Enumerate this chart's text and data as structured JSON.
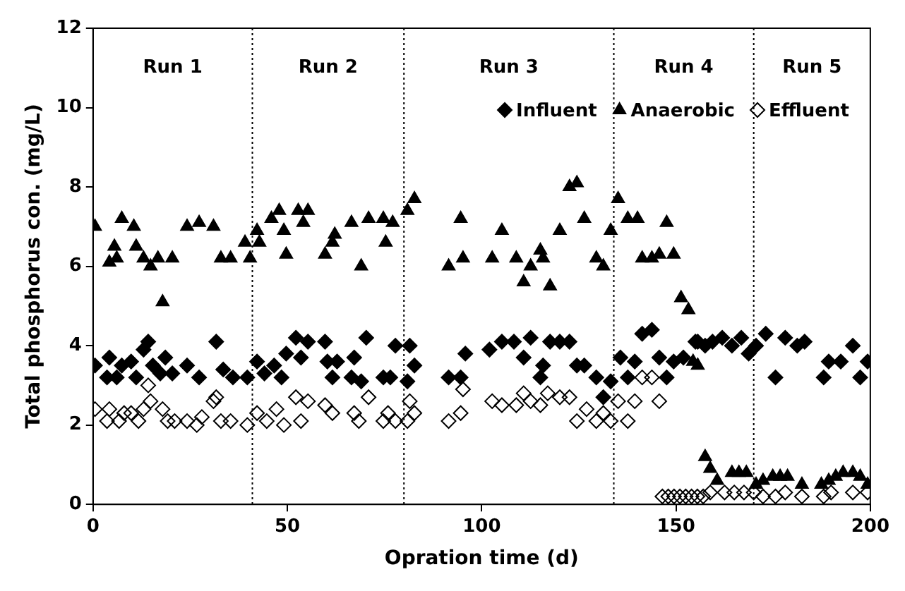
{
  "chart_data": {
    "type": "scatter",
    "xlabel": "Opration time (d)",
    "ylabel": "Total phosphorus con. (mg/L)",
    "xlim": [
      0,
      200
    ],
    "xticks": [
      0,
      50,
      100,
      150,
      200
    ],
    "ylim": [
      0,
      12
    ],
    "yticks": [
      0,
      2,
      4,
      6,
      8,
      10,
      12
    ],
    "grid": false,
    "legend": "top right",
    "ref_lines": [
      {
        "axis": "x",
        "value": 41,
        "line_style": "dotted"
      },
      {
        "axis": "x",
        "value": 80,
        "line_style": "dotted"
      },
      {
        "axis": "x",
        "value": 134,
        "line_style": "dotted"
      },
      {
        "axis": "x",
        "value": 170,
        "line_style": "dotted"
      }
    ],
    "annotations": [
      "Run 1",
      "Run 2",
      "Run 3",
      "Run 4",
      "Run 5"
    ],
    "series": [
      {
        "name": "Influent",
        "color": "#000000",
        "marker": "diamond",
        "x": [
          0.5,
          4.2,
          3.6,
          6.1,
          7.4,
          9.8,
          11.1,
          13,
          14.2,
          15.4,
          17.3,
          18.6,
          20.4,
          24.2,
          27.3,
          31.7,
          33.5,
          36,
          39.7,
          42.2,
          44.1,
          46.6,
          48.5,
          49.7,
          52.2,
          53.5,
          55.3,
          59.7,
          60.3,
          61.6,
          62.8,
          66.5,
          67.2,
          69,
          70.3,
          74.7,
          76.5,
          77.8,
          80.9,
          81.5,
          82.7,
          91.5,
          94.6,
          95.8,
          102,
          105.2,
          108.3,
          110.8,
          112.6,
          115.8,
          115.1,
          117.6,
          120.1,
          122.6,
          124.5,
          126.4,
          129.5,
          131.3,
          133.2,
          135.7,
          137.6,
          139.4,
          141.3,
          143.8,
          145.7,
          147.6,
          149.4,
          151.9,
          155,
          155.6,
          157.5,
          159.4,
          161.9,
          164.4,
          166.8,
          168.7,
          170.6,
          173.1,
          175.6,
          178.1,
          181.2,
          183.1,
          188,
          189.3,
          192.4,
          195.5,
          197.4,
          199.3
        ],
        "values": [
          3.5,
          3.7,
          3.2,
          3.2,
          3.5,
          3.6,
          3.2,
          3.9,
          4.1,
          3.5,
          3.3,
          3.7,
          3.3,
          3.5,
          3.2,
          4.1,
          3.4,
          3.2,
          3.2,
          3.6,
          3.3,
          3.5,
          3.2,
          3.8,
          4.2,
          3.7,
          4.1,
          4.1,
          3.6,
          3.2,
          3.6,
          3.2,
          3.7,
          3.1,
          4.2,
          3.2,
          3.2,
          4,
          3.1,
          4,
          3.5,
          3.2,
          3.2,
          3.8,
          3.9,
          4.1,
          4.1,
          3.7,
          4.2,
          3.5,
          3.2,
          4.1,
          4.1,
          4.1,
          3.5,
          3.5,
          3.2,
          2.7,
          3.1,
          3.7,
          3.2,
          3.6,
          4.3,
          4.4,
          3.7,
          3.2,
          3.6,
          3.7,
          4.1,
          4.1,
          4,
          4.1,
          4.2,
          4,
          4.2,
          3.8,
          4,
          4.3,
          3.2,
          4.2,
          4,
          4.1,
          3.2,
          3.6,
          3.6,
          4,
          3.2,
          3.6
        ]
      },
      {
        "name": "Anaerobic",
        "color": "#000000",
        "marker": "triangle",
        "x": [
          0.5,
          4.2,
          5.5,
          6.1,
          7.4,
          10.5,
          11.1,
          13,
          14.8,
          16.7,
          17.9,
          20.4,
          24.2,
          27.3,
          31,
          32.9,
          35.4,
          39.1,
          40.4,
          42.2,
          42.8,
          45.9,
          47.9,
          49.1,
          49.7,
          52.8,
          54.1,
          55.3,
          59.7,
          61.6,
          62.2,
          66.5,
          69,
          70.9,
          74.7,
          75.3,
          77.1,
          80.9,
          82.7,
          91.5,
          94.6,
          95.2,
          102.7,
          105.2,
          108.9,
          110.8,
          112.6,
          115.1,
          115.8,
          117.6,
          120.1,
          122.6,
          124.5,
          126.4,
          129.5,
          131.3,
          133.2,
          135.1,
          137.6,
          140.1,
          141.3,
          143.8,
          145.7,
          147.6,
          149.4,
          151.3,
          153.2,
          154.4,
          155.6,
          157.5,
          158.8,
          160.6,
          164.4,
          166.2,
          168.1,
          170.6,
          172.4,
          174.9,
          176.8,
          178.7,
          182.4,
          187.4,
          189.3,
          191.1,
          193,
          195.5,
          197.4,
          199.3
        ],
        "values": [
          7,
          6.1,
          6.5,
          6.2,
          7.2,
          7,
          6.5,
          6.2,
          6,
          6.2,
          5.1,
          6.2,
          7,
          7.1,
          7,
          6.2,
          6.2,
          6.6,
          6.2,
          6.9,
          6.6,
          7.2,
          7.4,
          6.9,
          6.3,
          7.4,
          7.1,
          7.4,
          6.3,
          6.6,
          6.8,
          7.1,
          6,
          7.2,
          7.2,
          6.6,
          7.1,
          7.4,
          7.7,
          6,
          7.2,
          6.2,
          6.2,
          6.9,
          6.2,
          5.6,
          6,
          6.4,
          6.2,
          5.5,
          6.9,
          8,
          8.1,
          7.2,
          6.2,
          6,
          6.9,
          7.7,
          7.2,
          7.2,
          6.2,
          6.2,
          6.3,
          7.1,
          6.3,
          5.2,
          4.9,
          3.6,
          3.5,
          1.2,
          0.9,
          0.6,
          0.8,
          0.8,
          0.8,
          0.5,
          0.6,
          0.7,
          0.7,
          0.7,
          0.5,
          0.5,
          0.6,
          0.7,
          0.8,
          0.8,
          0.7,
          0.5
        ]
      },
      {
        "name": "Effluent",
        "color": "#000000",
        "marker": "diamond",
        "x": [
          0.5,
          3.6,
          4.2,
          6.7,
          8,
          9.8,
          11.7,
          13,
          14.2,
          14.8,
          17.9,
          19.2,
          21,
          24.2,
          26.7,
          28,
          31.7,
          31,
          32.9,
          35.4,
          39.7,
          42.2,
          44.7,
          47.2,
          49.1,
          52.2,
          53.5,
          55.3,
          59.7,
          61.6,
          67.2,
          68.4,
          70.9,
          74.7,
          75.9,
          77.8,
          80.9,
          81.5,
          82.7,
          91.5,
          94.6,
          95.2,
          102.7,
          105.2,
          108.9,
          110.8,
          112.6,
          115.1,
          117,
          120.1,
          122.6,
          124.5,
          127,
          129.5,
          131.3,
          133.2,
          135.1,
          137.6,
          139.4,
          141.3,
          143.8,
          145.7,
          146.5,
          148,
          149.5,
          151,
          152.5,
          154,
          155.5,
          157,
          158.8,
          162.5,
          165,
          167.5,
          170,
          172.4,
          175.6,
          178.1,
          182.4,
          188,
          189.9,
          195.5,
          199.3
        ],
        "values": [
          2.4,
          2.1,
          2.4,
          2.1,
          2.3,
          2.3,
          2.1,
          2.4,
          3,
          2.6,
          2.4,
          2.1,
          2.1,
          2.1,
          2,
          2.2,
          2.7,
          2.6,
          2.1,
          2.1,
          2,
          2.3,
          2.1,
          2.4,
          2,
          2.7,
          2.1,
          2.6,
          2.5,
          2.3,
          2.3,
          2.1,
          2.7,
          2.1,
          2.3,
          2.1,
          2.1,
          2.6,
          2.3,
          2.1,
          2.3,
          2.9,
          2.6,
          2.5,
          2.5,
          2.8,
          2.6,
          2.5,
          2.8,
          2.7,
          2.7,
          2.1,
          2.4,
          2.1,
          2.3,
          2.1,
          2.6,
          2.1,
          2.6,
          3.2,
          3.2,
          2.6,
          0.2,
          0.2,
          0.2,
          0.2,
          0.2,
          0.2,
          0.2,
          0.2,
          0.3,
          0.3,
          0.3,
          0.3,
          0.3,
          0.2,
          0.2,
          0.3,
          0.2,
          0.2,
          0.3,
          0.3,
          0.3
        ]
      }
    ]
  }
}
